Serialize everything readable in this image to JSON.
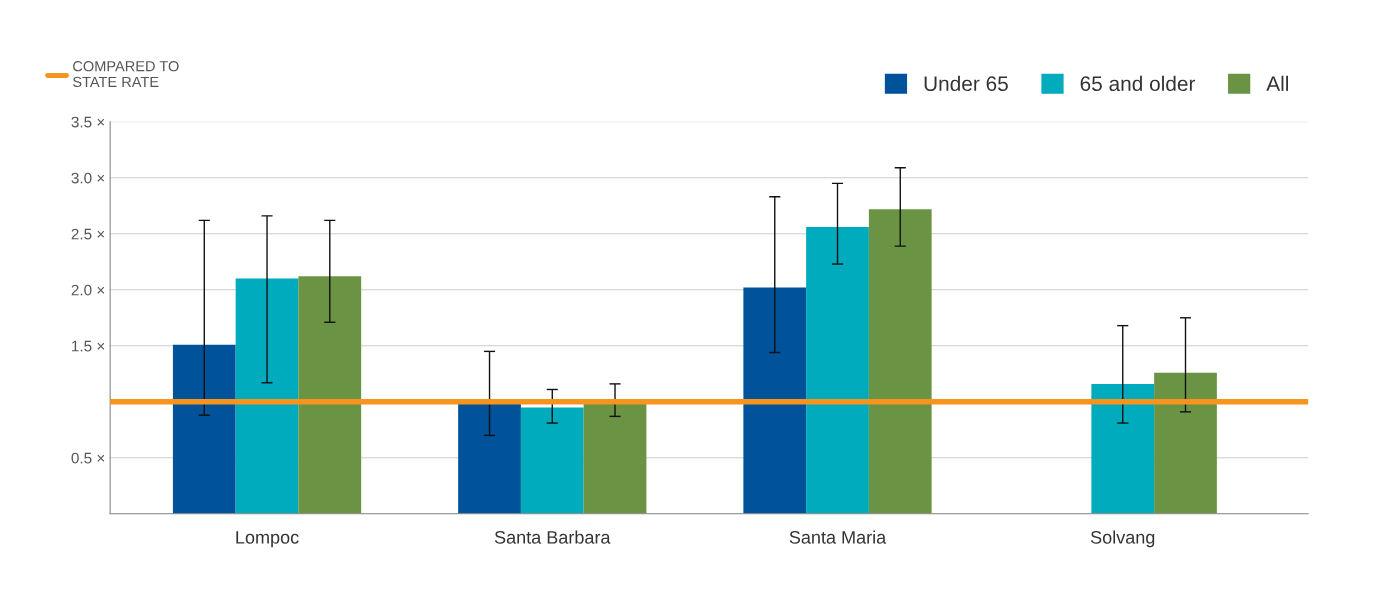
{
  "chart_data": {
    "type": "bar",
    "categories": [
      "Lompoc",
      "Santa Barbara",
      "Santa Maria",
      "Solvang"
    ],
    "series": [
      {
        "name": "Under 65",
        "color": "#00529b",
        "values": [
          1.51,
          1.0,
          2.02,
          null
        ],
        "errors": [
          [
            0.88,
            2.62
          ],
          [
            0.7,
            1.45
          ],
          [
            1.44,
            2.83
          ],
          null
        ]
      },
      {
        "name": "65 and older",
        "color": "#00abbd",
        "values": [
          2.1,
          0.95,
          2.56,
          1.16
        ],
        "errors": [
          [
            1.17,
            2.66
          ],
          [
            0.81,
            1.11
          ],
          [
            2.23,
            2.95
          ],
          [
            0.81,
            1.68
          ]
        ]
      },
      {
        "name": "All",
        "color": "#6a9444",
        "values": [
          2.12,
          1.0,
          2.72,
          1.26
        ],
        "errors": [
          [
            1.71,
            2.62
          ],
          [
            0.87,
            1.16
          ],
          [
            2.39,
            3.09
          ],
          [
            0.91,
            1.75
          ]
        ]
      }
    ],
    "ylim": [
      0,
      3.5
    ],
    "yticks": [
      {
        "value": 0,
        "label": null
      },
      {
        "value": 0.5,
        "label": "0.5 ×"
      },
      {
        "value": 1.5,
        "label": "1.5 ×"
      },
      {
        "value": 2.0,
        "label": "2.0 ×"
      },
      {
        "value": 2.5,
        "label": "2.5 ×"
      },
      {
        "value": 3.0,
        "label": "3.0 ×"
      },
      {
        "value": 3.5,
        "label": "3.5 ×"
      }
    ],
    "ref_lines": [
      {
        "axis": "y",
        "value": 1.0,
        "label": "COMPARED TO\nSTATE RATE",
        "color": "#f7941d"
      }
    ],
    "grid": "y",
    "legend": "top right"
  }
}
